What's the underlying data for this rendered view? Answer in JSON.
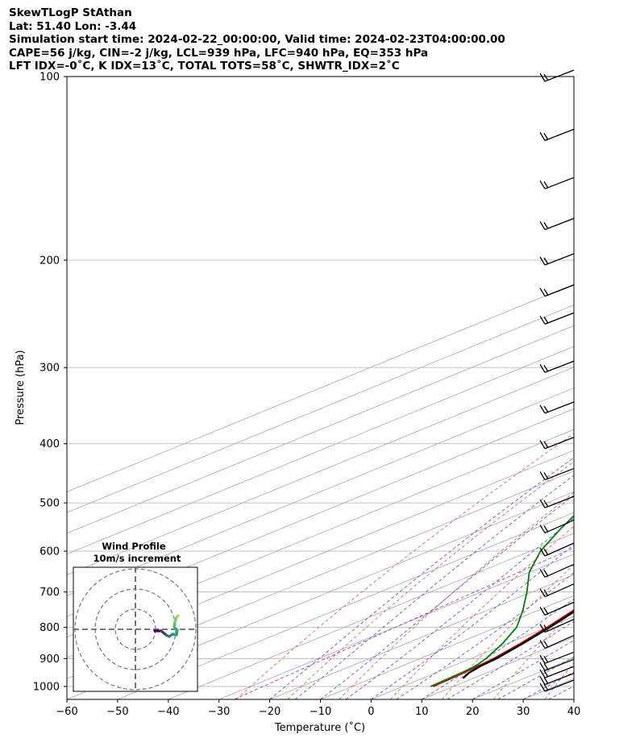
{
  "header": {
    "line1": "SkewTLogP StAthan",
    "line2": "Lat: 51.40   Lon: -3.44",
    "line3": "Simulation start time: 2024-02-22_00:00:00, Valid time: 2024-02-23T04:00:00.00",
    "line4": "CAPE=56 j/kg, CIN=-2 j/kg, LCL=939 hPa, LFC=940 hPa, EQ=353 hPa",
    "line5": "LFT IDX=-0˚C, K IDX=13˚C, TOTAL TOTS=58˚C, SHWTR_IDX=2˚C"
  },
  "chart_data": {
    "type": "line",
    "title": "",
    "xlabel": "Temperature (˚C)",
    "ylabel": "Pressure (hPa)",
    "xlim": [
      -60,
      40
    ],
    "ylim": [
      1050,
      100
    ],
    "y_scale": "log",
    "skew": true,
    "grid": true,
    "x_ticks": [
      "−60",
      "−50",
      "−40",
      "−30",
      "−20",
      "−10",
      "0",
      "10",
      "20",
      "30",
      "40"
    ],
    "y_ticks": [
      "100",
      "200",
      "300",
      "400",
      "500",
      "600",
      "700",
      "800",
      "900",
      "1000"
    ],
    "series": [
      {
        "color": "#dd0000",
        "pressure": [
          1000,
          950,
          925,
          900,
          850,
          800,
          750,
          700,
          650,
          600,
          550,
          500,
          450,
          400,
          370,
          355,
          330,
          300,
          270,
          240,
          220,
          200,
          180,
          160,
          140,
          130,
          120,
          110,
          100
        ],
        "temperature": [
          6,
          5.5,
          5,
          4.5,
          2.5,
          0,
          -3,
          -6.5,
          -10,
          -14,
          -18.5,
          -24,
          -30,
          -36.5,
          -41,
          -44,
          -46,
          -46,
          -46,
          -46,
          -45,
          -43,
          -42,
          -41,
          -44,
          -46,
          -49,
          -51,
          -53
        ]
      },
      {
        "color": "#008000",
        "pressure": [
          1000,
          950,
          925,
          900,
          850,
          800,
          750,
          700,
          650,
          600,
          550,
          500,
          450,
          420,
          380,
          340,
          300,
          270,
          240,
          220,
          200,
          180,
          160,
          140,
          120,
          100
        ],
        "temperature": [
          5.5,
          5,
          4.5,
          3,
          -1,
          -6,
          -13,
          -21,
          -30,
          -38,
          -45,
          -52,
          -59,
          -61,
          -63,
          -66,
          -66,
          -65,
          -63,
          -63,
          -65,
          -66,
          -64,
          -62,
          -61,
          -60
        ]
      },
      {
        "color": "#000000",
        "pressure": [
          970,
          950,
          925,
          900,
          850,
          800,
          750,
          700,
          650,
          600,
          550,
          500,
          450,
          400,
          353,
          300,
          250,
          200,
          150,
          120,
          100
        ],
        "temperature": [
          8,
          6.5,
          5.5,
          5,
          3,
          0.5,
          -2.5,
          -6,
          -9.5,
          -13.5,
          -18,
          -23,
          -28.5,
          -35,
          -42,
          -51,
          -62,
          -75,
          -93,
          -108,
          -120
        ]
      }
    ],
    "cape_fill": "#a2c6de",
    "wind_barbs_pressure": [
      1000,
      975,
      950,
      925,
      900,
      850,
      800,
      750,
      700,
      650,
      600,
      550,
      500,
      450,
      400,
      350,
      300,
      250,
      225,
      200,
      175,
      150,
      125,
      100
    ],
    "inset": {
      "title": "Wind Profile",
      "subtitle": "10m/s increment"
    }
  }
}
